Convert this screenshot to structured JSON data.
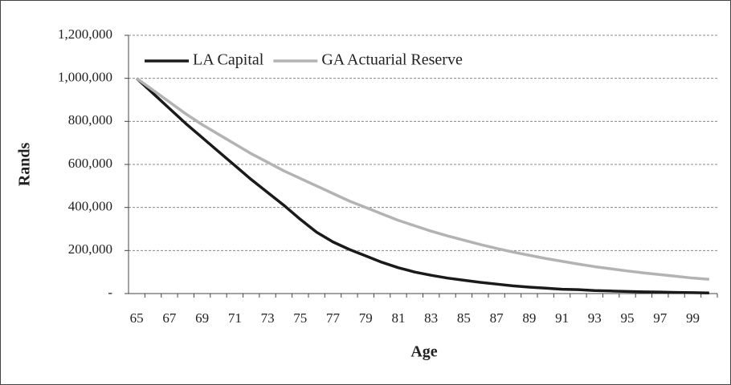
{
  "chart_data": {
    "type": "line",
    "x_label": "Age",
    "y_label": "Rands",
    "categories": [
      "65",
      null,
      "67",
      null,
      "69",
      null,
      "71",
      null,
      "73",
      null,
      "75",
      null,
      "77",
      null,
      "79",
      null,
      "81",
      null,
      "83",
      null,
      "85",
      null,
      "87",
      null,
      "89",
      null,
      "91",
      null,
      "93",
      null,
      "95",
      null,
      "97",
      null,
      "99",
      null
    ],
    "series": [
      {
        "name": "LA Capital",
        "color": "#1a1a1a",
        "values": [
          1000000,
          930000,
          860000,
          790000,
          725000,
          660000,
          595000,
          530000,
          470000,
          410000,
          345000,
          285000,
          240000,
          205000,
          175000,
          145000,
          120000,
          100000,
          85000,
          72000,
          62000,
          52000,
          44000,
          36000,
          30000,
          25000,
          20000,
          18000,
          14000,
          12000,
          10000,
          8000,
          7000,
          5000,
          4000,
          3000
        ]
      },
      {
        "name": "GA Actuarial Reserve",
        "color": "#b3b3b3",
        "values": [
          1000000,
          945000,
          890000,
          835000,
          785000,
          740000,
          695000,
          650000,
          610000,
          570000,
          535000,
          500000,
          465000,
          430000,
          400000,
          370000,
          340000,
          315000,
          290000,
          268000,
          248000,
          228000,
          210000,
          193000,
          178000,
          163000,
          150000,
          137000,
          125000,
          115000,
          105000,
          96000,
          88000,
          80000,
          72000,
          66000
        ]
      }
    ],
    "ylim": [
      0,
      1200000
    ],
    "yticks": [
      {
        "value": 0,
        "label": "-"
      },
      {
        "value": 200000,
        "label": "200,000"
      },
      {
        "value": 400000,
        "label": "400,000"
      },
      {
        "value": 600000,
        "label": "600,000"
      },
      {
        "value": 800000,
        "label": "800,000"
      },
      {
        "value": 1000000,
        "label": "1,000,000"
      },
      {
        "value": 1200000,
        "label": "1,200,000"
      }
    ],
    "grid": true,
    "legend": "top-left"
  }
}
